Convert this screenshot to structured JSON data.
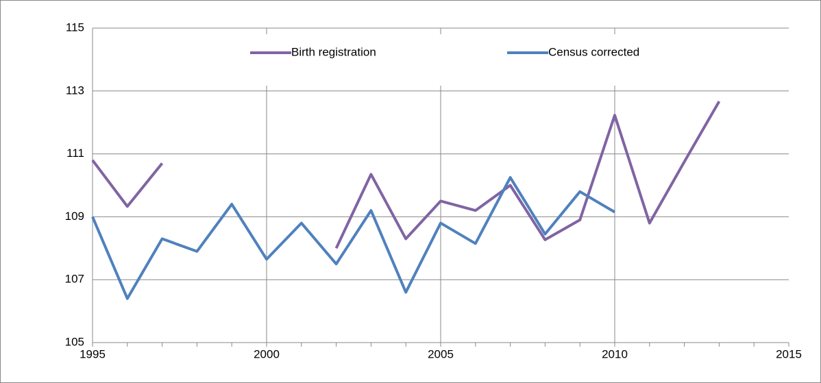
{
  "chart_data": {
    "type": "line",
    "x": [
      1995,
      1996,
      1997,
      1998,
      1999,
      2000,
      2001,
      2002,
      2003,
      2004,
      2005,
      2006,
      2007,
      2008,
      2009,
      2010,
      2011,
      2012,
      2013
    ],
    "series": [
      {
        "name": "Birth registration",
        "color": "#8064a2",
        "values": [
          110.8,
          109.33,
          110.7,
          null,
          null,
          null,
          null,
          108.0,
          110.35,
          108.3,
          109.5,
          109.2,
          110.0,
          108.27,
          108.9,
          112.23,
          108.8,
          110.75,
          112.67
        ]
      },
      {
        "name": "Census corrected",
        "color": "#4f81bd",
        "values": [
          109.0,
          106.4,
          108.3,
          107.9,
          109.4,
          107.65,
          108.8,
          107.5,
          109.2,
          106.6,
          108.8,
          108.15,
          110.25,
          108.45,
          109.8,
          109.15,
          null,
          null,
          null
        ]
      }
    ],
    "xlim": [
      1995,
      2015
    ],
    "xticks": [
      1995,
      2000,
      2005,
      2010,
      2015
    ],
    "ylim": [
      105,
      115
    ],
    "yticks": [
      105,
      107,
      109,
      111,
      113,
      115
    ],
    "grid": true,
    "legend": "top"
  }
}
